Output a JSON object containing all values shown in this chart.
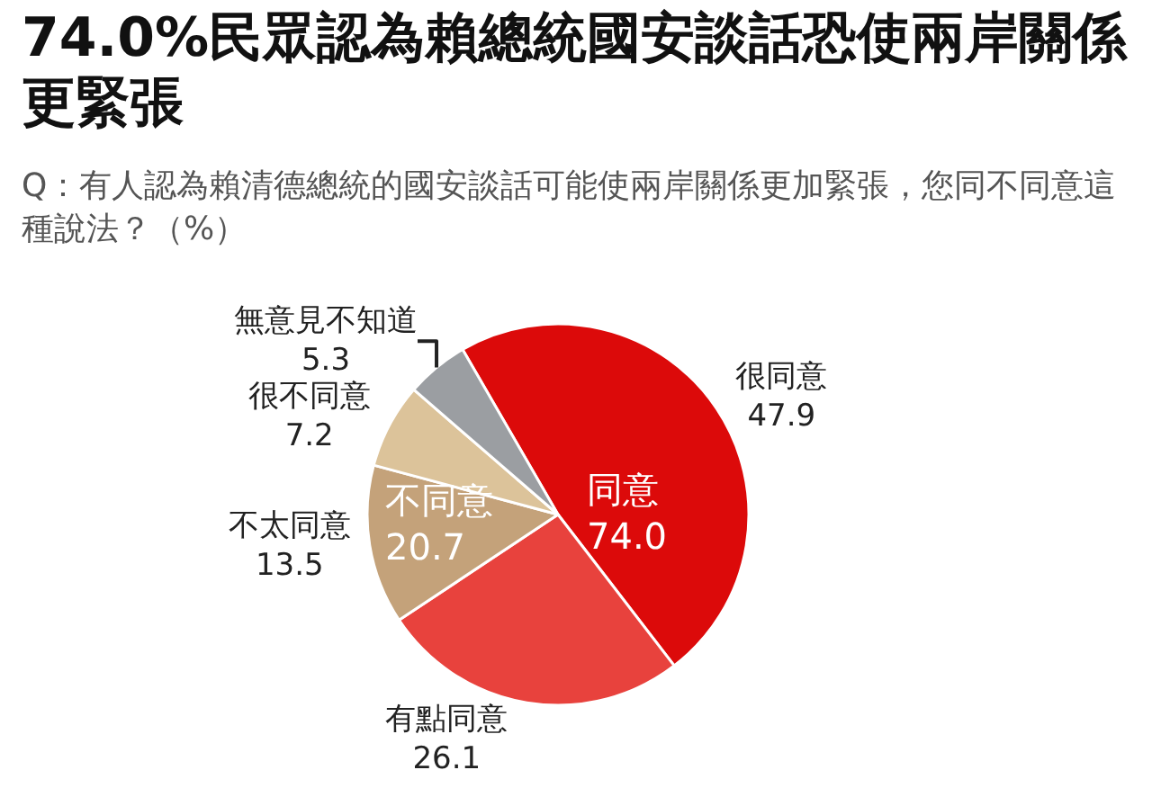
{
  "chart_data": {
    "type": "pie",
    "title": "74.0%民眾認為賴總統國安談話恐使兩岸關係更緊張",
    "subtitle": "Q：有人認為賴清德總統的國安談話可能使兩岸關係更加緊張，您同不同意這種說法？（%）",
    "categories": [
      "很同意",
      "有點同意",
      "不太同意",
      "很不同意",
      "無意見不知道"
    ],
    "values": [
      47.9,
      26.1,
      13.5,
      7.2,
      5.3
    ],
    "colors": [
      "#dc0a0a",
      "#e8423d",
      "#c4a27a",
      "#dcc39a",
      "#9b9ea2"
    ],
    "data_labels": true,
    "annotations": [
      "同意\n74.0",
      "不同意\n20.7"
    ]
  }
}
